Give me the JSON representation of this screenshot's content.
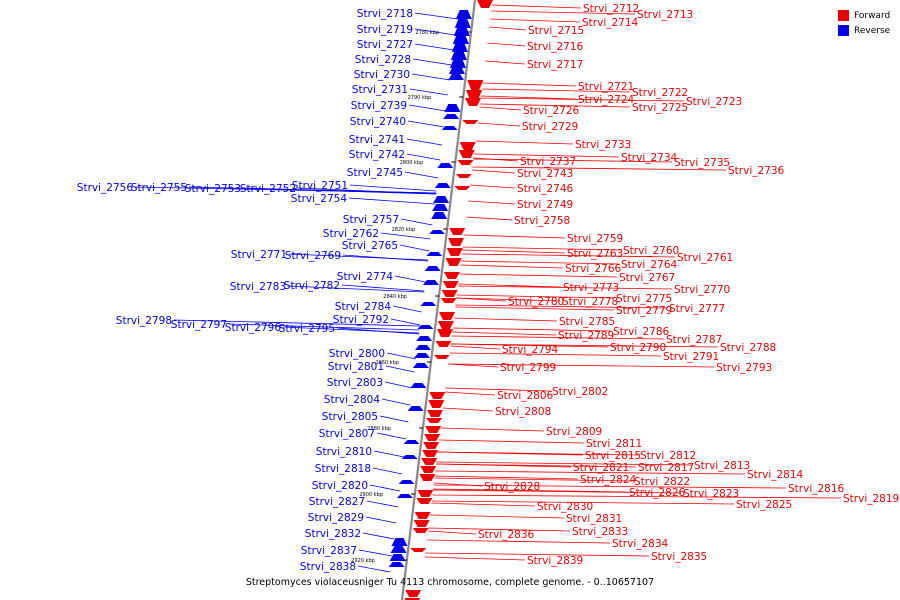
{
  "legend": {
    "forward": "Forward",
    "reverse": "Reverse"
  },
  "colors": {
    "forward": "#ee0000",
    "reverse": "#0000ee",
    "axis": "#888888"
  },
  "caption": "Streptomyces violaceusniger Tu 4113 chromosome, complete genome. - 0..10657107",
  "ticks": [
    "2780 kbp",
    "2790 kbp",
    "2800 kbp",
    "2820 kbp",
    "2840 kbp",
    "2860 kbp",
    "2880 kbp",
    "2900 kbp",
    "2920 kbp"
  ],
  "forward_genes": [
    "Strvi_2712",
    "Strvi_2713",
    "Strvi_2714",
    "Strvi_2715",
    "Strvi_2716",
    "Strvi_2717",
    "Strvi_2721",
    "Strvi_2722",
    "Strvi_2723",
    "Strvi_2724",
    "Strvi_2725",
    "Strvi_2726",
    "Strvi_2729",
    "Strvi_2733",
    "Strvi_2734",
    "Strvi_2735",
    "Strvi_2736",
    "Strvi_2737",
    "Strvi_2743",
    "Strvi_2746",
    "Strvi_2749",
    "Strvi_2758",
    "Strvi_2759",
    "Strvi_2760",
    "Strvi_2761",
    "Strvi_2763",
    "Strvi_2764",
    "Strvi_2766",
    "Strvi_2767",
    "Strvi_2770",
    "Strvi_2773",
    "Strvi_2775",
    "Strvi_2777",
    "Strvi_2778",
    "Strvi_2779",
    "Strvi_2780",
    "Strvi_2785",
    "Strvi_2786",
    "Strvi_2787",
    "Strvi_2788",
    "Strvi_2789",
    "Strvi_2790",
    "Strvi_2791",
    "Strvi_2793",
    "Strvi_2794",
    "Strvi_2799",
    "Strvi_2802",
    "Strvi_2806",
    "Strvi_2808",
    "Strvi_2809",
    "Strvi_2811",
    "Strvi_2812",
    "Strvi_2813",
    "Strvi_2814",
    "Strvi_2815",
    "Strvi_2816",
    "Strvi_2817",
    "Strvi_2819",
    "Strvi_2821",
    "Strvi_2822",
    "Strvi_2823",
    "Strvi_2824",
    "Strvi_2825",
    "Strvi_2826",
    "Strvi_2828",
    "Strvi_2830",
    "Strvi_2831",
    "Strvi_2833",
    "Strvi_2834",
    "Strvi_2835",
    "Strvi_2836",
    "Strvi_2839"
  ],
  "reverse_genes": [
    "Strvi_2718",
    "Strvi_2719",
    "Strvi_2727",
    "Strvi_2728",
    "Strvi_2730",
    "Strvi_2731",
    "Strvi_2739",
    "Strvi_2740",
    "Strvi_2741",
    "Strvi_2742",
    "Strvi_2745",
    "Strvi_2751",
    "Strvi_2752",
    "Strvi_2753",
    "Strvi_2754",
    "Strvi_2755",
    "Strvi_2756",
    "Strvi_2757",
    "Strvi_2762",
    "Strvi_2765",
    "Strvi_2769",
    "Strvi_2771",
    "Strvi_2774",
    "Strvi_2782",
    "Strvi_2783",
    "Strvi_2784",
    "Strvi_2792",
    "Strvi_2795",
    "Strvi_2796",
    "Strvi_2797",
    "Strvi_2798",
    "Strvi_2800",
    "Strvi_2801",
    "Strvi_2803",
    "Strvi_2804",
    "Strvi_2805",
    "Strvi_2807",
    "Strvi_2810",
    "Strvi_2818",
    "Strvi_2820",
    "Strvi_2827",
    "Strvi_2829",
    "Strvi_2832",
    "Strvi_2837",
    "Strvi_2838"
  ]
}
